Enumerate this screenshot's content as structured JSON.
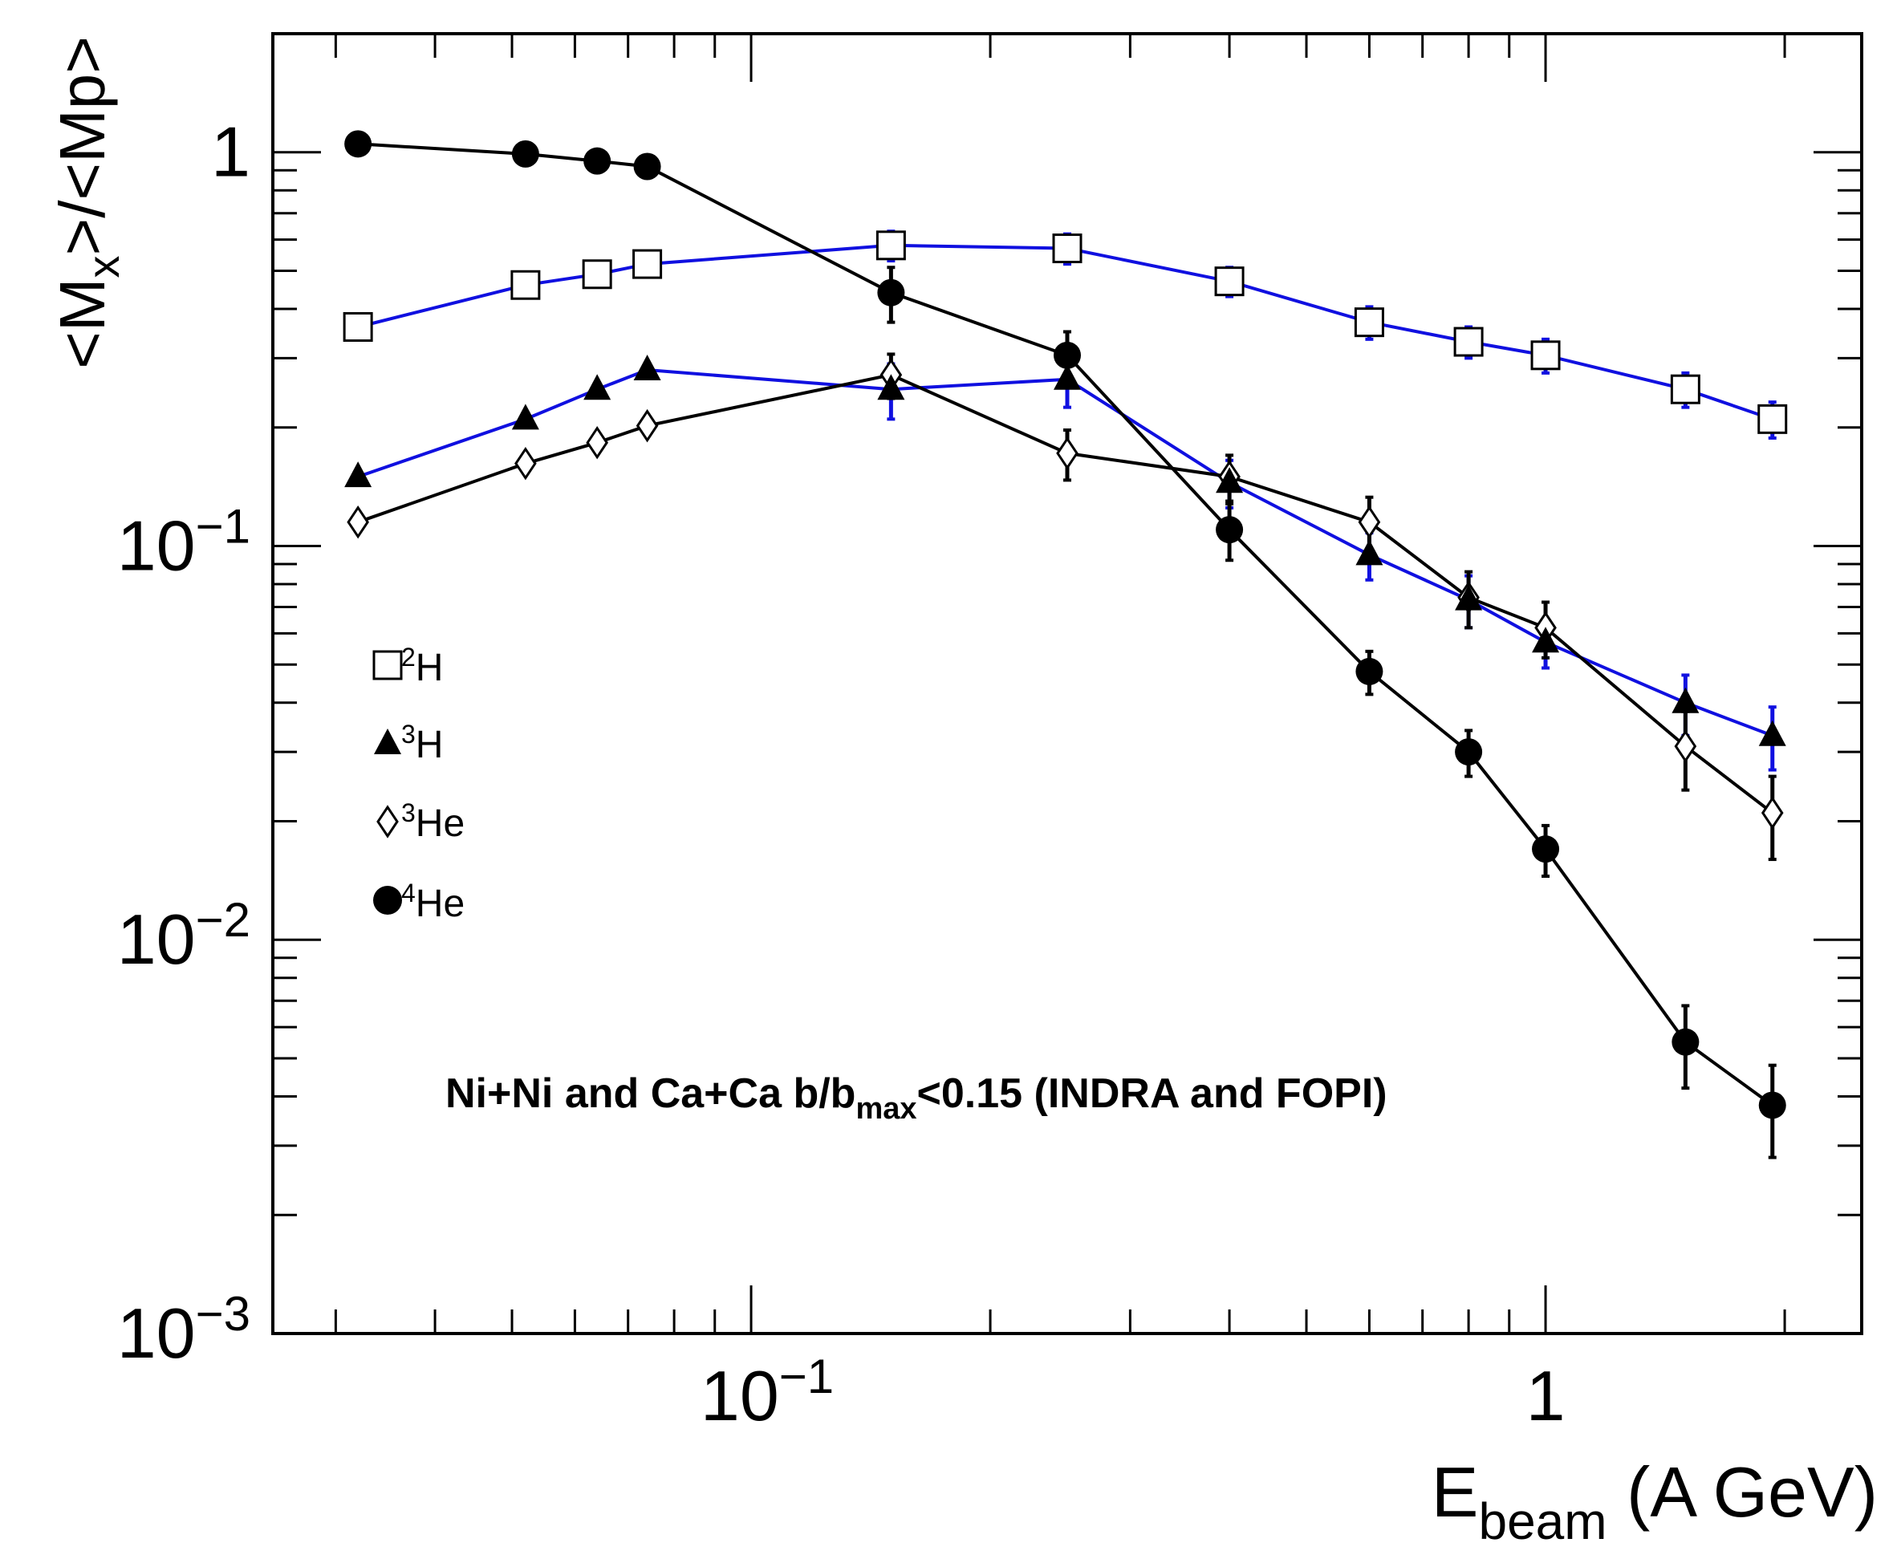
{
  "chart_data": {
    "type": "scatter",
    "scale": {
      "x": "log",
      "y": "log"
    },
    "xlim": [
      0.025,
      2.5
    ],
    "ylim": [
      0.001,
      2.0
    ],
    "xlabel": {
      "main": "E",
      "sub": "beam",
      "rest": " (A GeV)"
    },
    "ylabel": {
      "p1": "<M",
      "sub": "x",
      "p2": ">/<Mp>"
    },
    "x_ticks": [
      {
        "value": 0.1,
        "base": "10",
        "exp": "−1"
      },
      {
        "value": 1,
        "base": "1",
        "exp": ""
      }
    ],
    "y_ticks": [
      {
        "value": 1,
        "base": "1",
        "exp": ""
      },
      {
        "value": 0.1,
        "base": "10",
        "exp": "−1"
      },
      {
        "value": 0.01,
        "base": "10",
        "exp": "−2"
      },
      {
        "value": 0.001,
        "base": "10",
        "exp": "−3"
      }
    ],
    "annotation": {
      "p1": "Ni+Ni and Ca+Ca b/b",
      "sub": "max",
      "p2": "<0.15 (INDRA and FOPI)"
    },
    "series": [
      {
        "name": "2H",
        "legend_sup": "2",
        "legend_text": "H",
        "marker": "open-square",
        "line_color": "#1010e0",
        "err_color": "#1010e0",
        "x": [
          0.032,
          0.052,
          0.064,
          0.074,
          0.15,
          0.25,
          0.4,
          0.6,
          0.8,
          1.0,
          1.5,
          1.93
        ],
        "y": [
          0.36,
          0.46,
          0.49,
          0.52,
          0.58,
          0.57,
          0.47,
          0.37,
          0.33,
          0.305,
          0.25,
          0.21
        ],
        "err": [
          0,
          0,
          0,
          0,
          0.05,
          0.05,
          0.04,
          0.035,
          0.03,
          0.03,
          0.025,
          0.022
        ]
      },
      {
        "name": "3H",
        "legend_sup": "3",
        "legend_text": "H",
        "marker": "filled-triangle",
        "line_color": "#1010e0",
        "err_color": "#1010e0",
        "x": [
          0.032,
          0.052,
          0.064,
          0.074,
          0.15,
          0.25,
          0.4,
          0.6,
          0.8,
          1.0,
          1.5,
          1.93
        ],
        "y": [
          0.15,
          0.21,
          0.25,
          0.28,
          0.25,
          0.265,
          0.145,
          0.095,
          0.073,
          0.057,
          0.04,
          0.033
        ],
        "err": [
          0,
          0,
          0,
          0,
          0.04,
          0.04,
          0.02,
          0.013,
          0.011,
          0.008,
          0.007,
          0.006
        ]
      },
      {
        "name": "3He",
        "legend_sup": "3",
        "legend_text": "He",
        "marker": "open-diamond",
        "line_color": "#000000",
        "err_color": "#000000",
        "x": [
          0.032,
          0.052,
          0.064,
          0.074,
          0.15,
          0.25,
          0.4,
          0.6,
          0.8,
          1.0,
          1.5,
          1.93
        ],
        "y": [
          0.115,
          0.162,
          0.183,
          0.202,
          0.272,
          0.172,
          0.15,
          0.115,
          0.074,
          0.062,
          0.031,
          0.021
        ],
        "err": [
          0,
          0,
          0,
          0,
          0.035,
          0.025,
          0.02,
          0.018,
          0.012,
          0.01,
          0.007,
          0.005
        ]
      },
      {
        "name": "4He",
        "legend_sup": "4",
        "legend_text": "He",
        "marker": "filled-circle",
        "line_color": "#000000",
        "err_color": "#000000",
        "x": [
          0.032,
          0.052,
          0.064,
          0.074,
          0.15,
          0.25,
          0.4,
          0.6,
          0.8,
          1.0,
          1.5,
          1.93
        ],
        "y": [
          1.05,
          0.99,
          0.95,
          0.92,
          0.44,
          0.305,
          0.11,
          0.048,
          0.03,
          0.017,
          0.0055,
          0.0038
        ],
        "err": [
          0,
          0,
          0,
          0,
          0.07,
          0.045,
          0.018,
          0.006,
          0.004,
          0.0025,
          0.0013,
          0.001
        ]
      }
    ]
  }
}
